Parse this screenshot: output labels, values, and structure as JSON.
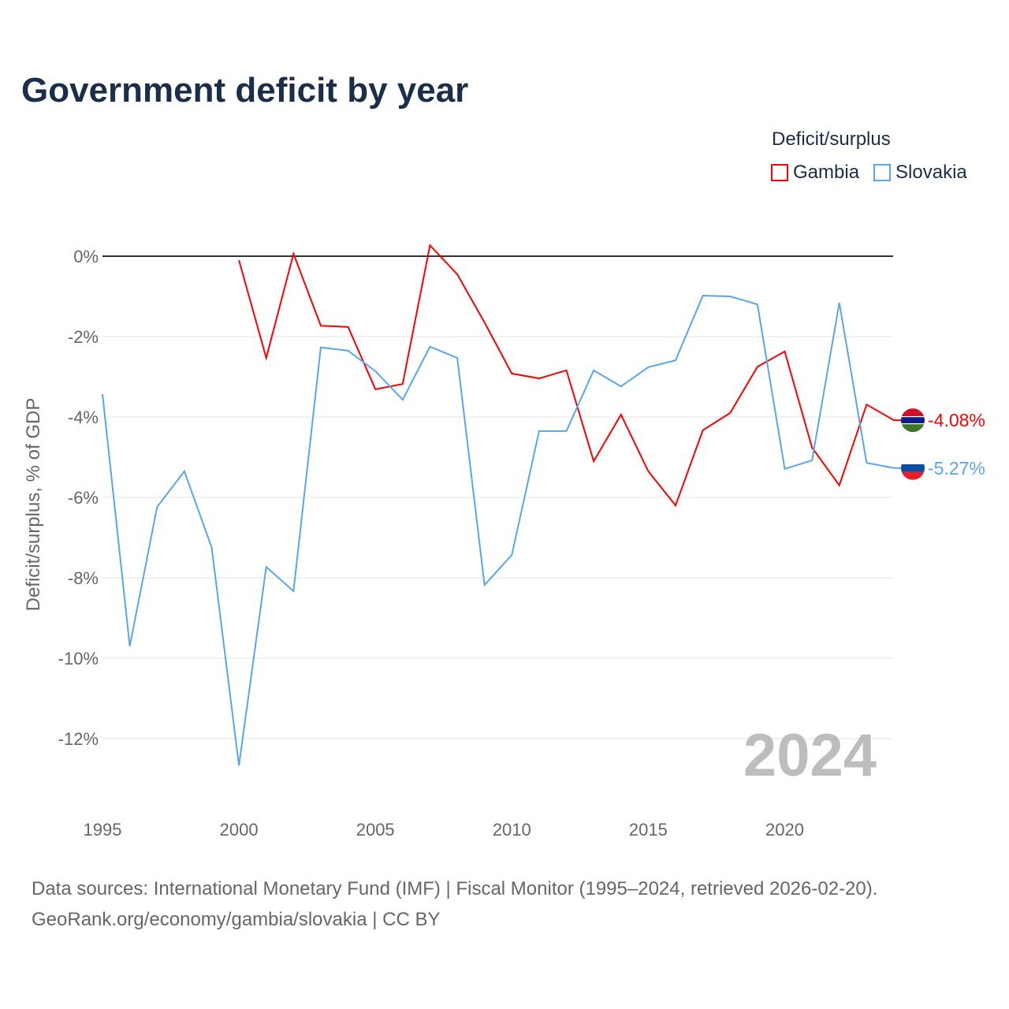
{
  "title": "Government deficit by year",
  "legend": {
    "title": "Deficit/surplus",
    "items": [
      "Gambia",
      "Slovakia"
    ]
  },
  "year_watermark": "2024",
  "source_line1": "Data sources: International Monetary Fund (IMF) | Fiscal Monitor (1995–2024, retrieved 2026-02-20).",
  "source_line2": "GeoRank.org/economy/gambia/slovakia | CC BY",
  "colors": {
    "Gambia": "#ff0000",
    "Slovakia": "#5aa6ec"
  },
  "chart_data": {
    "type": "line",
    "title": "Government deficit by year",
    "xlabel": "",
    "ylabel": "Deficit/surplus, % of GDP",
    "xlim": [
      1995,
      2024
    ],
    "ylim": [
      -13.5,
      0.5
    ],
    "xticks": [
      "1995",
      "2000",
      "2005",
      "2010",
      "2015",
      "2020"
    ],
    "yticks": [
      "0%",
      "-2%",
      "-4%",
      "-6%",
      "-8%",
      "-10%",
      "-12%"
    ],
    "ytick_values": [
      0,
      -2,
      -4,
      -6,
      -8,
      -10,
      -12
    ],
    "legend_position": "top-right",
    "end_labels": {
      "Gambia": "-4.08%",
      "Slovakia": "-5.27%"
    },
    "series": [
      {
        "name": "Gambia",
        "x": [
          2000,
          2001,
          2002,
          2003,
          2004,
          2005,
          2006,
          2007,
          2008,
          2009,
          2010,
          2011,
          2012,
          2013,
          2014,
          2015,
          2016,
          2017,
          2018,
          2019,
          2020,
          2021,
          2022,
          2023,
          2024
        ],
        "values": [
          -0.1,
          -2.53,
          0.06,
          -1.73,
          -1.76,
          -3.31,
          -3.18,
          0.27,
          -0.45,
          -1.65,
          -2.92,
          -3.04,
          -2.84,
          -5.1,
          -3.94,
          -5.35,
          -6.2,
          -4.33,
          -3.9,
          -2.75,
          -2.37,
          -4.76,
          -5.7,
          -3.69,
          -4.08
        ]
      },
      {
        "name": "Slovakia",
        "x": [
          1995,
          1996,
          1997,
          1998,
          1999,
          2000,
          2001,
          2002,
          2003,
          2004,
          2005,
          2006,
          2007,
          2008,
          2009,
          2010,
          2011,
          2012,
          2013,
          2014,
          2015,
          2016,
          2017,
          2018,
          2019,
          2020,
          2021,
          2022,
          2023,
          2024
        ],
        "values": [
          -3.43,
          -9.7,
          -6.24,
          -5.35,
          -7.24,
          -12.67,
          -7.73,
          -8.33,
          -2.27,
          -2.35,
          -2.86,
          -3.57,
          -2.25,
          -2.53,
          -8.18,
          -7.43,
          -4.35,
          -4.35,
          -2.84,
          -3.24,
          -2.76,
          -2.59,
          -0.98,
          -1.0,
          -1.2,
          -5.29,
          -5.08,
          -1.16,
          -5.14,
          -5.27
        ]
      }
    ]
  }
}
